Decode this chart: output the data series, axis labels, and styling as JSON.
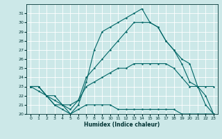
{
  "xlabel": "Humidex (Indice chaleur)",
  "bg_color": "#cce8e8",
  "grid_color": "#ffffff",
  "line_color": "#006666",
  "xlim": [
    -0.5,
    23.5
  ],
  "ylim": [
    20,
    32
  ],
  "yticks": [
    20,
    21,
    22,
    23,
    24,
    25,
    26,
    27,
    28,
    29,
    30,
    31
  ],
  "xticks": [
    0,
    1,
    2,
    3,
    4,
    5,
    6,
    7,
    8,
    9,
    10,
    11,
    12,
    13,
    14,
    15,
    16,
    17,
    18,
    19,
    20,
    21,
    22,
    23
  ],
  "line1_x": [
    0,
    1,
    2,
    3,
    4,
    5,
    6,
    7,
    8,
    9,
    10,
    11,
    12,
    13,
    14,
    15,
    16,
    17,
    18,
    19,
    20,
    21,
    22,
    23
  ],
  "line1_y": [
    23,
    23,
    22,
    21,
    20.5,
    20,
    21,
    23.5,
    27,
    29,
    29.5,
    30,
    30.5,
    31,
    31.5,
    30,
    29.5,
    28,
    27,
    26,
    25.5,
    23,
    21,
    20
  ],
  "line2_x": [
    0,
    1,
    2,
    3,
    4,
    5,
    6,
    7,
    8,
    9,
    10,
    11,
    12,
    13,
    14,
    15,
    16,
    17,
    18,
    19,
    20,
    21,
    22,
    23
  ],
  "line2_y": [
    23,
    23,
    22,
    21.5,
    21,
    20.5,
    21.5,
    24,
    25,
    26,
    27,
    28,
    29,
    30,
    30,
    30,
    29.5,
    28,
    27,
    25.5,
    23.5,
    23,
    22,
    20
  ],
  "line3_x": [
    0,
    1,
    2,
    3,
    4,
    5,
    6,
    7,
    8,
    9,
    10,
    11,
    12,
    13,
    14,
    15,
    16,
    17,
    18,
    19,
    20,
    21,
    22,
    23
  ],
  "line3_y": [
    23,
    23,
    22,
    22,
    21,
    21,
    21.5,
    23,
    23.5,
    24,
    24.5,
    25,
    25,
    25.5,
    25.5,
    25.5,
    25.5,
    25.5,
    25,
    24,
    23,
    23,
    23,
    23
  ],
  "line4_x": [
    0,
    1,
    2,
    3,
    4,
    5,
    6,
    7,
    8,
    9,
    10,
    11,
    12,
    13,
    14,
    15,
    16,
    17,
    18,
    19,
    20,
    21,
    22,
    23
  ],
  "line4_y": [
    23,
    22.5,
    22,
    21,
    21,
    20,
    20.5,
    21,
    21,
    21,
    21,
    20.5,
    20.5,
    20.5,
    20.5,
    20.5,
    20.5,
    20.5,
    20.5,
    20,
    20,
    20,
    20,
    20
  ]
}
